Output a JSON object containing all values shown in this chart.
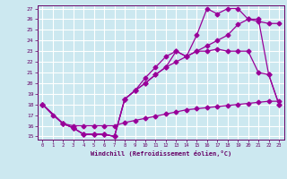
{
  "xlabel": "Windchill (Refroidissement éolien,°C)",
  "bg_color": "#cce8f0",
  "grid_color": "#ffffff",
  "line_color": "#990099",
  "xlim": [
    -0.5,
    23.5
  ],
  "ylim": [
    14.7,
    27.3
  ],
  "xticks": [
    0,
    1,
    2,
    3,
    4,
    5,
    6,
    7,
    8,
    9,
    10,
    11,
    12,
    13,
    14,
    15,
    16,
    17,
    18,
    19,
    20,
    21,
    22,
    23
  ],
  "yticks": [
    15,
    16,
    17,
    18,
    19,
    20,
    21,
    22,
    23,
    24,
    25,
    26,
    27
  ],
  "line1_x": [
    0,
    1,
    2,
    3,
    4,
    5,
    6,
    7,
    8,
    9,
    10,
    11,
    12,
    13,
    14,
    15,
    16,
    17,
    18,
    19,
    20,
    21,
    22,
    23
  ],
  "line1_y": [
    18,
    17,
    16.2,
    16,
    16,
    16,
    16,
    16,
    16.3,
    16.5,
    16.7,
    16.9,
    17.1,
    17.3,
    17.5,
    17.6,
    17.7,
    17.8,
    17.9,
    18.0,
    18.1,
    18.2,
    18.3,
    18.3
  ],
  "line2_x": [
    0,
    2,
    3,
    4,
    5,
    6,
    7,
    8,
    9,
    10,
    11,
    12,
    13,
    14,
    15,
    16,
    17,
    18,
    19,
    20,
    21,
    22,
    23
  ],
  "line2_y": [
    18,
    16.2,
    15.8,
    15.2,
    15.2,
    15.2,
    15.0,
    18.5,
    19.3,
    20.0,
    20.8,
    21.5,
    22.0,
    22.5,
    23.0,
    23.5,
    24.0,
    24.5,
    25.5,
    26.0,
    25.8,
    25.6,
    25.6
  ],
  "line3_x": [
    0,
    2,
    3,
    4,
    5,
    6,
    7,
    8,
    9,
    10,
    11,
    12,
    13,
    14,
    15,
    16,
    17,
    18,
    19,
    20,
    21,
    22,
    23
  ],
  "line3_y": [
    18,
    16.2,
    15.8,
    15.2,
    15.2,
    15.2,
    15.0,
    18.5,
    19.3,
    20.5,
    21.5,
    22.5,
    23.0,
    22.5,
    24.5,
    27.0,
    26.5,
    27.0,
    27.0,
    26.0,
    26.0,
    20.8,
    18
  ],
  "line4_x": [
    0,
    2,
    3,
    4,
    5,
    6,
    7,
    8,
    9,
    10,
    11,
    12,
    13,
    14,
    15,
    16,
    17,
    18,
    19,
    20,
    21,
    22,
    23
  ],
  "line4_y": [
    18,
    16.2,
    15.8,
    15.2,
    15.2,
    15.2,
    15.0,
    18.5,
    19.3,
    20.0,
    20.8,
    21.5,
    23.0,
    22.5,
    23.0,
    23.0,
    23.2,
    23.0,
    23.0,
    23.0,
    21.0,
    20.8,
    18
  ]
}
